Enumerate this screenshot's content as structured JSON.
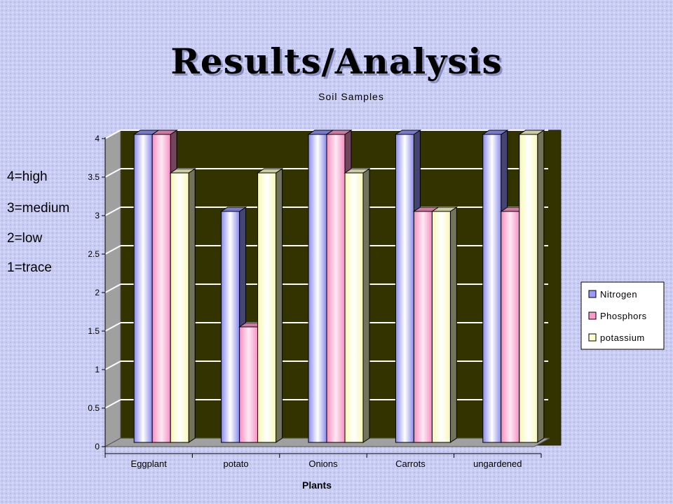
{
  "slide": {
    "title": "Results/Analysis",
    "scale_notes": [
      "4=high",
      "3=medium",
      "2=low",
      "1=trace"
    ]
  },
  "chart_data": {
    "type": "bar",
    "title": "Soil Samples",
    "xlabel": "Plants",
    "ylabel": "",
    "categories": [
      "Eggplant",
      "potato",
      "Onions",
      "Carrots",
      "ungardened"
    ],
    "series": [
      {
        "name": "Nitrogen",
        "values": [
          4,
          3,
          4,
          4,
          4
        ],
        "color": "#9999ff"
      },
      {
        "name": "Phosphors",
        "values": [
          4,
          1.5,
          4,
          3,
          3
        ],
        "color": "#ff99cc"
      },
      {
        "name": "potassium",
        "values": [
          3.5,
          3.5,
          3.5,
          3,
          4
        ],
        "color": "#ffffcc"
      }
    ],
    "ylim": [
      0,
      4
    ],
    "yticks": [
      "0",
      "0.5",
      "1",
      "1.5",
      "2",
      "2.5",
      "3",
      "3.5",
      "4"
    ],
    "grid": true,
    "legend_position": "right",
    "plot_background": "#333300",
    "three_d": true
  }
}
